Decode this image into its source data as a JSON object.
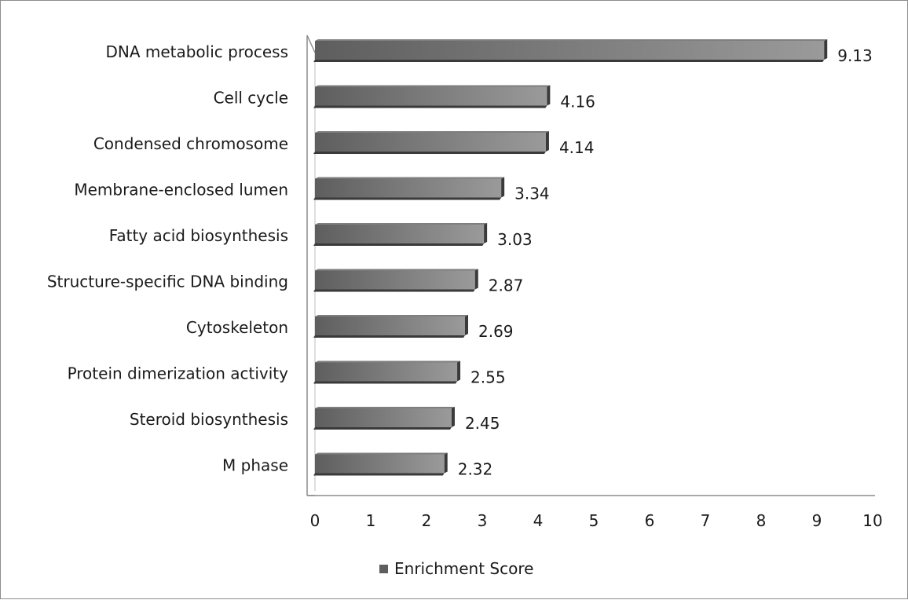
{
  "chart_data": {
    "type": "bar",
    "orientation": "horizontal",
    "style": "3d",
    "categories": [
      "DNA metabolic process",
      "Cell cycle",
      "Condensed chromosome",
      "Membrane-enclosed lumen",
      "Fatty acid biosynthesis",
      "Structure-specific DNA binding",
      "Cytoskeleton",
      "Protein dimerization activity",
      "Steroid biosynthesis",
      "M phase"
    ],
    "series": [
      {
        "name": "Enrichment Score",
        "values": [
          9.13,
          4.16,
          4.14,
          3.34,
          3.03,
          2.87,
          2.69,
          2.55,
          2.45,
          2.32
        ],
        "data_labels": [
          "9.13",
          "4.16",
          "4.14",
          "3.34",
          "3.03",
          "2.87",
          "2.69",
          "2.55",
          "2.45",
          "2.32"
        ]
      }
    ],
    "xlim": [
      0,
      10
    ],
    "xticks": [
      "0",
      "1",
      "2",
      "3",
      "4",
      "5",
      "6",
      "7",
      "8",
      "9",
      "10"
    ],
    "grid": false,
    "legend_position": "bottom",
    "colors": {
      "bar_front": "#5e5e5e",
      "bar_top": "#7f7f7f",
      "bar_side": "#3a3a3a",
      "bar_highlight": "#9a9a9a",
      "axis": "#8c8c8c",
      "text": "#1a1a1a"
    }
  }
}
